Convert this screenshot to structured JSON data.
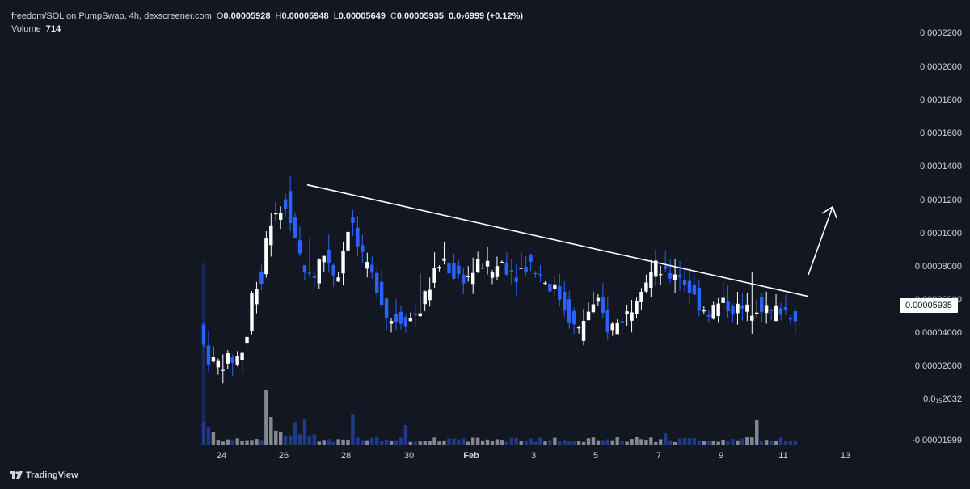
{
  "legend": {
    "symbol": "freedom/SOL on PumpSwap, 4h, dexscreener.com",
    "o_label": "O",
    "o_value": "0.00005928",
    "h_label": "H",
    "h_value": "0.00005948",
    "l_label": "L",
    "l_value": "0.00005649",
    "c_label": "C",
    "c_value": "0.00005935",
    "change": "0.0₇6999 (+0.12%)",
    "volume_label": "Volume",
    "volume_value": "714"
  },
  "current_price": "0.00005935",
  "brand": "TradingView",
  "colors": {
    "background": "#131722",
    "up": "#ffffff",
    "down": "#2962ff",
    "trendline": "#ffffff",
    "grid": "#1e222d",
    "text": "#d1d4dc"
  },
  "chart_data": {
    "type": "candlestick",
    "y_tick_labels": [
      "0.0002200",
      "0.0002000",
      "0.0001800",
      "0.0001600",
      "0.0001400",
      "0.0001200",
      "0.0001000",
      "0.00008000",
      "0.00006000",
      "0.00004000",
      "0.00002000",
      "0.0₁₅2032",
      "-0.00001999"
    ],
    "x_tick_labels": [
      "24",
      "26",
      "28",
      "30",
      "Feb",
      "3",
      "5",
      "7",
      "9",
      "11",
      "13"
    ],
    "ylim": [
      -2e-05,
      0.00023
    ],
    "trendline": {
      "from_x": "Jan 26 ~16h",
      "from_y": 0.000136,
      "to_x": "Feb 11 ~20h",
      "to_y": 6.9e-05
    },
    "arrow": {
      "direction": "up-right",
      "from_y": 7e-05,
      "to_y": 0.00012
    },
    "last_close": 5.935e-05
  }
}
